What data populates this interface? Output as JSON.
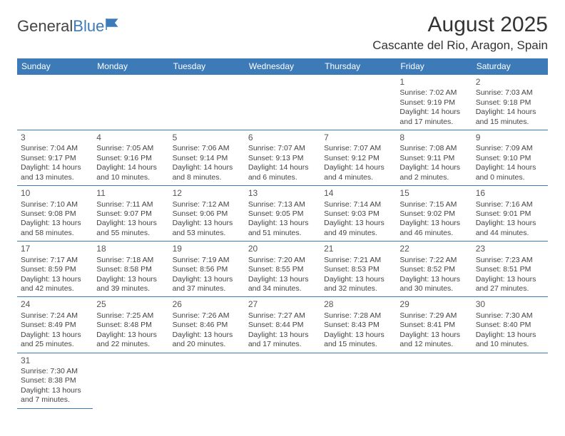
{
  "logo": {
    "text_a": "General",
    "text_b": "Blue"
  },
  "header": {
    "month_title": "August 2025",
    "location": "Cascante del Rio, Aragon, Spain"
  },
  "colors": {
    "brand": "#3d7bb8",
    "text": "#333333",
    "background": "#ffffff"
  },
  "weekdays": [
    "Sunday",
    "Monday",
    "Tuesday",
    "Wednesday",
    "Thursday",
    "Friday",
    "Saturday"
  ],
  "weeks": [
    [
      null,
      null,
      null,
      null,
      null,
      {
        "day": "1",
        "sunrise": "Sunrise: 7:02 AM",
        "sunset": "Sunset: 9:19 PM",
        "day1": "Daylight: 14 hours",
        "day2": "and 17 minutes."
      },
      {
        "day": "2",
        "sunrise": "Sunrise: 7:03 AM",
        "sunset": "Sunset: 9:18 PM",
        "day1": "Daylight: 14 hours",
        "day2": "and 15 minutes."
      }
    ],
    [
      {
        "day": "3",
        "sunrise": "Sunrise: 7:04 AM",
        "sunset": "Sunset: 9:17 PM",
        "day1": "Daylight: 14 hours",
        "day2": "and 13 minutes."
      },
      {
        "day": "4",
        "sunrise": "Sunrise: 7:05 AM",
        "sunset": "Sunset: 9:16 PM",
        "day1": "Daylight: 14 hours",
        "day2": "and 10 minutes."
      },
      {
        "day": "5",
        "sunrise": "Sunrise: 7:06 AM",
        "sunset": "Sunset: 9:14 PM",
        "day1": "Daylight: 14 hours",
        "day2": "and 8 minutes."
      },
      {
        "day": "6",
        "sunrise": "Sunrise: 7:07 AM",
        "sunset": "Sunset: 9:13 PM",
        "day1": "Daylight: 14 hours",
        "day2": "and 6 minutes."
      },
      {
        "day": "7",
        "sunrise": "Sunrise: 7:07 AM",
        "sunset": "Sunset: 9:12 PM",
        "day1": "Daylight: 14 hours",
        "day2": "and 4 minutes."
      },
      {
        "day": "8",
        "sunrise": "Sunrise: 7:08 AM",
        "sunset": "Sunset: 9:11 PM",
        "day1": "Daylight: 14 hours",
        "day2": "and 2 minutes."
      },
      {
        "day": "9",
        "sunrise": "Sunrise: 7:09 AM",
        "sunset": "Sunset: 9:10 PM",
        "day1": "Daylight: 14 hours",
        "day2": "and 0 minutes."
      }
    ],
    [
      {
        "day": "10",
        "sunrise": "Sunrise: 7:10 AM",
        "sunset": "Sunset: 9:08 PM",
        "day1": "Daylight: 13 hours",
        "day2": "and 58 minutes."
      },
      {
        "day": "11",
        "sunrise": "Sunrise: 7:11 AM",
        "sunset": "Sunset: 9:07 PM",
        "day1": "Daylight: 13 hours",
        "day2": "and 55 minutes."
      },
      {
        "day": "12",
        "sunrise": "Sunrise: 7:12 AM",
        "sunset": "Sunset: 9:06 PM",
        "day1": "Daylight: 13 hours",
        "day2": "and 53 minutes."
      },
      {
        "day": "13",
        "sunrise": "Sunrise: 7:13 AM",
        "sunset": "Sunset: 9:05 PM",
        "day1": "Daylight: 13 hours",
        "day2": "and 51 minutes."
      },
      {
        "day": "14",
        "sunrise": "Sunrise: 7:14 AM",
        "sunset": "Sunset: 9:03 PM",
        "day1": "Daylight: 13 hours",
        "day2": "and 49 minutes."
      },
      {
        "day": "15",
        "sunrise": "Sunrise: 7:15 AM",
        "sunset": "Sunset: 9:02 PM",
        "day1": "Daylight: 13 hours",
        "day2": "and 46 minutes."
      },
      {
        "day": "16",
        "sunrise": "Sunrise: 7:16 AM",
        "sunset": "Sunset: 9:01 PM",
        "day1": "Daylight: 13 hours",
        "day2": "and 44 minutes."
      }
    ],
    [
      {
        "day": "17",
        "sunrise": "Sunrise: 7:17 AM",
        "sunset": "Sunset: 8:59 PM",
        "day1": "Daylight: 13 hours",
        "day2": "and 42 minutes."
      },
      {
        "day": "18",
        "sunrise": "Sunrise: 7:18 AM",
        "sunset": "Sunset: 8:58 PM",
        "day1": "Daylight: 13 hours",
        "day2": "and 39 minutes."
      },
      {
        "day": "19",
        "sunrise": "Sunrise: 7:19 AM",
        "sunset": "Sunset: 8:56 PM",
        "day1": "Daylight: 13 hours",
        "day2": "and 37 minutes."
      },
      {
        "day": "20",
        "sunrise": "Sunrise: 7:20 AM",
        "sunset": "Sunset: 8:55 PM",
        "day1": "Daylight: 13 hours",
        "day2": "and 34 minutes."
      },
      {
        "day": "21",
        "sunrise": "Sunrise: 7:21 AM",
        "sunset": "Sunset: 8:53 PM",
        "day1": "Daylight: 13 hours",
        "day2": "and 32 minutes."
      },
      {
        "day": "22",
        "sunrise": "Sunrise: 7:22 AM",
        "sunset": "Sunset: 8:52 PM",
        "day1": "Daylight: 13 hours",
        "day2": "and 30 minutes."
      },
      {
        "day": "23",
        "sunrise": "Sunrise: 7:23 AM",
        "sunset": "Sunset: 8:51 PM",
        "day1": "Daylight: 13 hours",
        "day2": "and 27 minutes."
      }
    ],
    [
      {
        "day": "24",
        "sunrise": "Sunrise: 7:24 AM",
        "sunset": "Sunset: 8:49 PM",
        "day1": "Daylight: 13 hours",
        "day2": "and 25 minutes."
      },
      {
        "day": "25",
        "sunrise": "Sunrise: 7:25 AM",
        "sunset": "Sunset: 8:48 PM",
        "day1": "Daylight: 13 hours",
        "day2": "and 22 minutes."
      },
      {
        "day": "26",
        "sunrise": "Sunrise: 7:26 AM",
        "sunset": "Sunset: 8:46 PM",
        "day1": "Daylight: 13 hours",
        "day2": "and 20 minutes."
      },
      {
        "day": "27",
        "sunrise": "Sunrise: 7:27 AM",
        "sunset": "Sunset: 8:44 PM",
        "day1": "Daylight: 13 hours",
        "day2": "and 17 minutes."
      },
      {
        "day": "28",
        "sunrise": "Sunrise: 7:28 AM",
        "sunset": "Sunset: 8:43 PM",
        "day1": "Daylight: 13 hours",
        "day2": "and 15 minutes."
      },
      {
        "day": "29",
        "sunrise": "Sunrise: 7:29 AM",
        "sunset": "Sunset: 8:41 PM",
        "day1": "Daylight: 13 hours",
        "day2": "and 12 minutes."
      },
      {
        "day": "30",
        "sunrise": "Sunrise: 7:30 AM",
        "sunset": "Sunset: 8:40 PM",
        "day1": "Daylight: 13 hours",
        "day2": "and 10 minutes."
      }
    ],
    [
      {
        "day": "31",
        "sunrise": "Sunrise: 7:30 AM",
        "sunset": "Sunset: 8:38 PM",
        "day1": "Daylight: 13 hours",
        "day2": "and 7 minutes."
      },
      null,
      null,
      null,
      null,
      null,
      null
    ]
  ]
}
